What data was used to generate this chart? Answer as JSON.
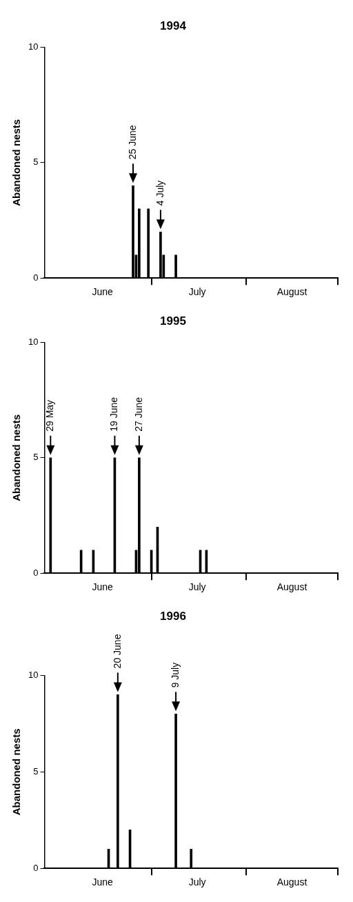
{
  "chart_data": [
    {
      "type": "bar",
      "title": "1994",
      "ylabel": "Abandoned nests",
      "x": [
        "--06-25",
        "--06-26",
        "--06-27",
        "--06-30",
        "--07-04",
        "--07-05",
        "--07-09"
      ],
      "values": [
        4,
        1,
        3,
        3,
        2,
        1,
        1
      ],
      "color": "#000000",
      "xlim": [
        "--05-27",
        "--08-31"
      ],
      "xticks": [
        {
          "value": "--06-15",
          "label": "June"
        },
        {
          "value": "--07-01",
          "label": null
        },
        {
          "value": "--07-16",
          "label": "July"
        },
        {
          "value": "--08-01",
          "label": null
        },
        {
          "value": "--08-16",
          "label": "August"
        },
        {
          "value": "--08-31",
          "label": null
        }
      ],
      "ylim": [
        0,
        10
      ],
      "yticks": [
        0,
        5,
        10
      ],
      "grid": false,
      "legend": false,
      "annotations": [
        {
          "text": "25 June",
          "x": "--06-25",
          "y": 4
        },
        {
          "text": "4 July",
          "x": "--07-04",
          "y": 2
        }
      ]
    },
    {
      "type": "bar",
      "title": "1995",
      "ylabel": "Abandoned nests",
      "x": [
        "--05-29",
        "--06-08",
        "--06-12",
        "--06-19",
        "--06-26",
        "--06-27",
        "--07-01",
        "--07-03",
        "--07-17",
        "--07-19"
      ],
      "values": [
        5,
        1,
        1,
        5,
        1,
        5,
        1,
        2,
        1,
        1
      ],
      "color": "#000000",
      "xlim": [
        "--05-27",
        "--08-31"
      ],
      "xticks": [
        {
          "value": "--06-15",
          "label": "June"
        },
        {
          "value": "--07-01",
          "label": null
        },
        {
          "value": "--07-16",
          "label": "July"
        },
        {
          "value": "--08-01",
          "label": null
        },
        {
          "value": "--08-16",
          "label": "August"
        },
        {
          "value": "--08-31",
          "label": null
        }
      ],
      "ylim": [
        0,
        10
      ],
      "yticks": [
        0,
        5,
        10
      ],
      "grid": false,
      "legend": false,
      "annotations": [
        {
          "text": "29 May",
          "x": "--05-29",
          "y": 5
        },
        {
          "text": "19 June",
          "x": "--06-19",
          "y": 5
        },
        {
          "text": "27 June",
          "x": "--06-27",
          "y": 5
        }
      ]
    },
    {
      "type": "bar",
      "title": "1996",
      "ylabel": "Abandoned nests",
      "x": [
        "--06-17",
        "--06-20",
        "--06-24",
        "--07-09",
        "--07-14"
      ],
      "values": [
        1,
        9,
        2,
        8,
        1
      ],
      "color": "#000000",
      "xlim": [
        "--05-27",
        "--08-31"
      ],
      "xticks": [
        {
          "value": "--06-15",
          "label": "June"
        },
        {
          "value": "--07-01",
          "label": null
        },
        {
          "value": "--07-16",
          "label": "July"
        },
        {
          "value": "--08-01",
          "label": null
        },
        {
          "value": "--08-16",
          "label": "August"
        },
        {
          "value": "--08-31",
          "label": null
        }
      ],
      "ylim": [
        0,
        10
      ],
      "yticks": [
        0,
        5,
        10
      ],
      "grid": false,
      "legend": false,
      "annotations": [
        {
          "text": "20 June",
          "x": "--06-20",
          "y": 9
        },
        {
          "text": "9 July",
          "x": "--07-09",
          "y": 8
        }
      ]
    }
  ]
}
